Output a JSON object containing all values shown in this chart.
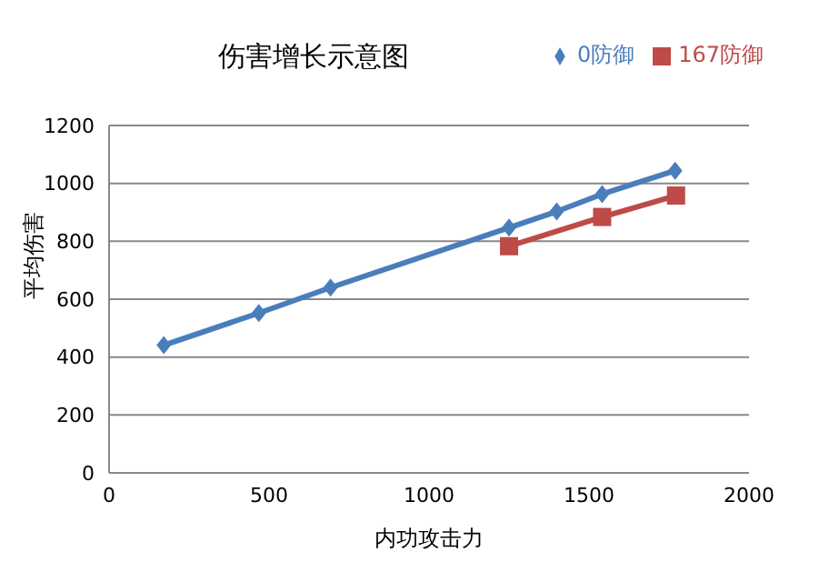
{
  "chart_data": {
    "type": "line",
    "title": "伤害增长示意图",
    "xlabel": "内功攻击力",
    "ylabel": "平均伤害",
    "xlim": [
      0,
      2000
    ],
    "xticks": [
      0,
      500,
      1000,
      1500,
      2000
    ],
    "ylim": [
      0,
      1200
    ],
    "yticks": [
      0,
      200,
      400,
      600,
      800,
      1000,
      1200
    ],
    "grid": "y",
    "legend": "top right",
    "series": [
      {
        "name": "0防御",
        "color": "#4a7ebb",
        "marker": "diamond",
        "x": [
          171,
          468,
          692,
          1250,
          1399,
          1541,
          1769
        ],
        "values": [
          441,
          552,
          640,
          847,
          903,
          963,
          1044
        ]
      },
      {
        "name": "167防御",
        "color": "#be4b48",
        "marker": "square",
        "x": [
          1250,
          1541,
          1772
        ],
        "values": [
          783,
          884,
          958
        ]
      }
    ]
  }
}
